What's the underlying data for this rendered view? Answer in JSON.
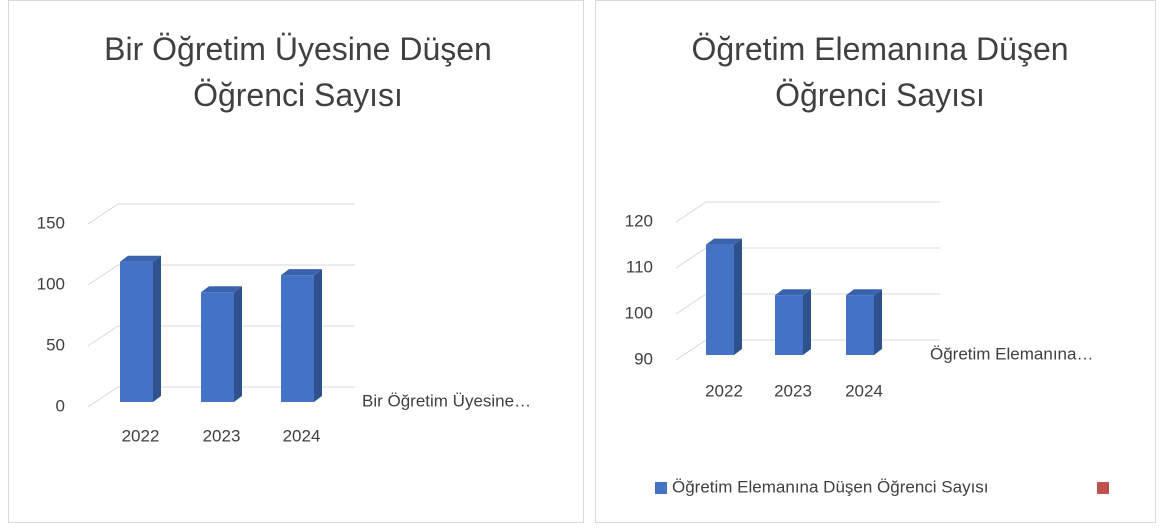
{
  "chart_data": [
    {
      "type": "bar",
      "title": "Bir Öğretim Üyesine Düşen Öğrenci Sayısı",
      "categories": [
        "2022",
        "2023",
        "2024"
      ],
      "series": [
        {
          "name": "Bir Öğretim Üyesine…",
          "color": "#4472c4",
          "values": [
            115,
            90,
            104
          ]
        }
      ],
      "ylim": [
        0,
        150
      ],
      "yticks": [
        0,
        50,
        100,
        150
      ],
      "grid": true
    },
    {
      "type": "bar",
      "title": "Öğretim Elemanına Düşen Öğrenci Sayısı",
      "categories": [
        "2022",
        "2023",
        "2024"
      ],
      "series": [
        {
          "name": "Öğretim Elemanına…",
          "color": "#4472c4",
          "values": [
            114,
            103,
            103
          ]
        }
      ],
      "ylim": [
        90,
        120
      ],
      "yticks": [
        90,
        100,
        110,
        120
      ],
      "grid": true,
      "legend": [
        {
          "name": "Öğretim Elemanına Düşen Öğrenci Sayısı",
          "color": "#4472c4"
        },
        {
          "color": "#c0504d"
        }
      ]
    }
  ]
}
